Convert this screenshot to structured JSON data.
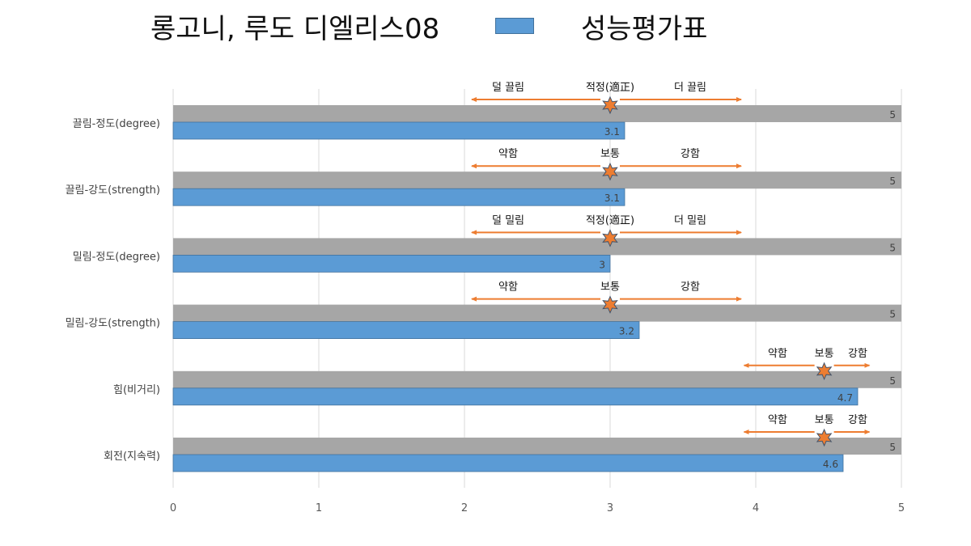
{
  "header": {
    "title": "롱고니, 루도 디엘리스08",
    "legend_label": "성능평가표"
  },
  "colors": {
    "max_bar": "#a6a6a6",
    "value_bar": "#5b9bd5",
    "value_bar_border": "#41719c",
    "arrow": "#ed7d31",
    "star_fill": "#ed7d31",
    "star_stroke": "#44546a",
    "grid": "#d9d9d9"
  },
  "chart_data": {
    "type": "bar",
    "orientation": "horizontal",
    "xlim": [
      0,
      5
    ],
    "x_ticks": [
      "0",
      "1",
      "2",
      "3",
      "4",
      "5"
    ],
    "grid": true,
    "categories": [
      "끌림-정도(degree)",
      "끌림-강도(strength)",
      "밀림-정도(degree)",
      "밀림-강도(strength)",
      "힘(비거리)",
      "회전(지속력)"
    ],
    "series": [
      {
        "name": "",
        "values": [
          5,
          5,
          5,
          5,
          5,
          5
        ]
      },
      {
        "name": "성능평가표",
        "values": [
          3.1,
          3.1,
          3.0,
          3.2,
          4.7,
          4.6
        ]
      }
    ],
    "value_labels": [
      [
        "5",
        "3.1"
      ],
      [
        "5",
        "3.1"
      ],
      [
        "5",
        "3"
      ],
      [
        "5",
        "3.2"
      ],
      [
        "5",
        "4.7"
      ],
      [
        "5",
        "4.6"
      ]
    ],
    "annotations": [
      {
        "left": "덜 끌림",
        "center": "적정(適正)",
        "right": "더 끌림",
        "range": [
          2.05,
          3.9
        ],
        "mid": 3.0,
        "label_x": [
          2.3,
          3.0,
          3.55
        ]
      },
      {
        "left": "약함",
        "center": "보통",
        "right": "강함",
        "range": [
          2.05,
          3.9
        ],
        "mid": 3.0,
        "label_x": [
          2.3,
          3.0,
          3.55
        ]
      },
      {
        "left": "덜 밀림",
        "center": "적정(適正)",
        "right": "더 밀림",
        "range": [
          2.05,
          3.9
        ],
        "mid": 3.0,
        "label_x": [
          2.3,
          3.0,
          3.55
        ]
      },
      {
        "left": "약함",
        "center": "보통",
        "right": "강함",
        "range": [
          2.05,
          3.9
        ],
        "mid": 3.0,
        "label_x": [
          2.3,
          3.0,
          3.55
        ]
      },
      {
        "left": "약함",
        "center": "보통",
        "right": "강함",
        "range": [
          3.92,
          4.78
        ],
        "mid": 4.47,
        "label_x": [
          4.15,
          4.47,
          4.7
        ]
      },
      {
        "left": "약함",
        "center": "보통",
        "right": "강함",
        "range": [
          3.92,
          4.78
        ],
        "mid": 4.47,
        "label_x": [
          4.15,
          4.47,
          4.7
        ]
      }
    ]
  }
}
